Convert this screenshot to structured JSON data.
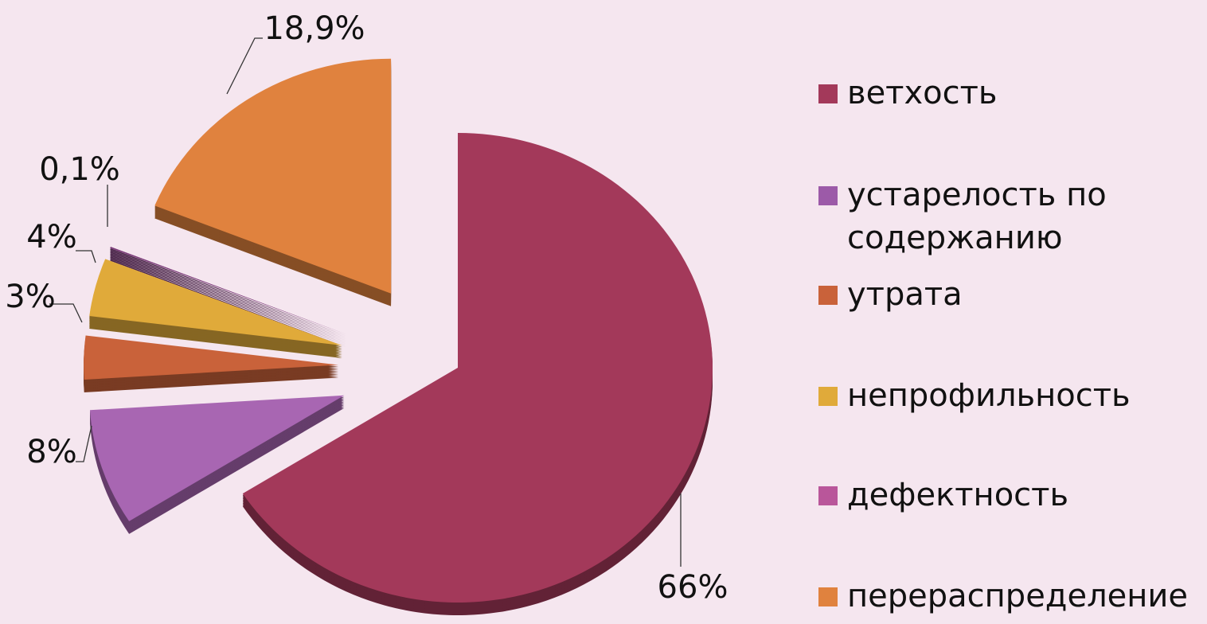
{
  "chart_data": {
    "type": "pie",
    "categories": [
      "ветхость",
      "устарелость по содержанию",
      "утрата",
      "непрофильность",
      "дефектность",
      "перераспределение"
    ],
    "values": [
      66,
      8,
      3,
      4,
      0.1,
      18.9
    ],
    "value_labels": [
      "66%",
      "8%",
      "3%",
      "4%",
      "0,1%",
      "18,9%"
    ],
    "colors": [
      "#a3395a",
      "#a866b2",
      "#c9623a",
      "#e0aa3a",
      "#7a3a78",
      "#e0823e"
    ],
    "legend_colors": [
      "#a3395a",
      "#9c5aa8",
      "#c9623a",
      "#e0aa3a",
      "#b9569a",
      "#e0823e"
    ],
    "legend": "right"
  }
}
